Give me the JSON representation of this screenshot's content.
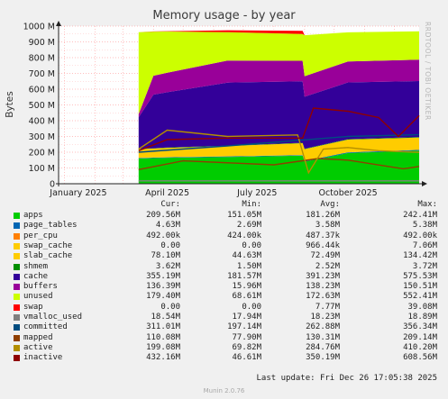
{
  "title": "Memory usage - by year",
  "watermark": "RRDTOOL / TOBI OETIKER",
  "footer": {
    "last_update": "Last update:  Fri Dec 26 17:05:38 2025",
    "version": "Munin 2.0.76"
  },
  "legend_headers": {
    "cur": "Cur:",
    "min": "Min:",
    "avg": "Avg:",
    "max": "Max:"
  },
  "legend": [
    {
      "name": "apps",
      "color": "#00cc00",
      "cur": "209.56M",
      "min": "151.05M",
      "avg": "181.26M",
      "max": "242.41M"
    },
    {
      "name": "page_tables",
      "color": "#0066b3",
      "cur": "4.63M",
      "min": "2.69M",
      "avg": "3.58M",
      "max": "5.38M"
    },
    {
      "name": "per_cpu",
      "color": "#ff8000",
      "cur": "492.00k",
      "min": "424.00k",
      "avg": "487.37k",
      "max": "492.00k"
    },
    {
      "name": "swap_cache",
      "color": "#ffcc00",
      "cur": "0.00",
      "min": "0.00",
      "avg": "966.44k",
      "max": "7.06M"
    },
    {
      "name": "slab_cache",
      "color": "#ffcc00",
      "cur": "78.10M",
      "min": "44.63M",
      "avg": "72.49M",
      "max": "134.42M"
    },
    {
      "name": "shmem",
      "color": "#008f00",
      "cur": "3.62M",
      "min": "1.50M",
      "avg": "2.52M",
      "max": "3.72M"
    },
    {
      "name": "cache",
      "color": "#330099",
      "cur": "355.19M",
      "min": "181.57M",
      "avg": "391.23M",
      "max": "575.53M"
    },
    {
      "name": "buffers",
      "color": "#990099",
      "cur": "136.39M",
      "min": "15.96M",
      "avg": "138.23M",
      "max": "150.51M"
    },
    {
      "name": "unused",
      "color": "#ccff00",
      "cur": "179.40M",
      "min": "68.61M",
      "avg": "172.63M",
      "max": "552.41M"
    },
    {
      "name": "swap",
      "color": "#ff0000",
      "cur": "0.00",
      "min": "0.00",
      "avg": "7.77M",
      "max": "39.08M"
    },
    {
      "name": "vmalloc_used",
      "color": "#808080",
      "cur": "18.54M",
      "min": "17.94M",
      "avg": "18.23M",
      "max": "18.89M"
    },
    {
      "name": "committed",
      "color": "#004d80",
      "cur": "311.01M",
      "min": "197.14M",
      "avg": "262.88M",
      "max": "356.34M"
    },
    {
      "name": "mapped",
      "color": "#8f3f00",
      "cur": "110.08M",
      "min": "77.90M",
      "avg": "130.31M",
      "max": "209.14M"
    },
    {
      "name": "active",
      "color": "#b38f00",
      "cur": "199.08M",
      "min": "69.82M",
      "avg": "284.76M",
      "max": "410.20M"
    },
    {
      "name": "inactive",
      "color": "#8f0000",
      "cur": "432.16M",
      "min": "46.61M",
      "avg": "350.19M",
      "max": "608.56M"
    }
  ],
  "chart_data": {
    "type": "area",
    "title": "Memory usage - by year",
    "ylabel": "Bytes",
    "ylim": [
      0,
      1000
    ],
    "yunit": "M",
    "yticks": [
      "0",
      "100 M",
      "200 M",
      "300 M",
      "400 M",
      "500 M",
      "600 M",
      "700 M",
      "800 M",
      "900 M",
      "1000 M"
    ],
    "xlim": [
      "2024-12-26",
      "2025-12-26"
    ],
    "xticks": [
      "January 2025",
      "April 2025",
      "July 2025",
      "October 2025"
    ],
    "data_start": "2025-03-17",
    "stacked_series": [
      {
        "name": "apps",
        "color": "#00cc00",
        "x": [
          "2025-03-17",
          "2025-04-15",
          "2025-06-15",
          "2025-08-30",
          "2025-09-01",
          "2025-10-15",
          "2025-12-26"
        ],
        "y": [
          160,
          165,
          170,
          178,
          140,
          195,
          210
        ]
      },
      {
        "name": "page_tables",
        "color": "#0066b3",
        "x": [
          "2025-03-17",
          "2025-12-26"
        ],
        "y": [
          3,
          4.6
        ]
      },
      {
        "name": "per_cpu",
        "color": "#ff8000",
        "x": [
          "2025-03-17",
          "2025-12-26"
        ],
        "y": [
          0.5,
          0.5
        ]
      },
      {
        "name": "swap_cache",
        "color": "#ffcc00",
        "x": [
          "2025-03-17",
          "2025-12-26"
        ],
        "y": [
          0.5,
          0
        ]
      },
      {
        "name": "slab_cache",
        "color": "#ffcc00",
        "x": [
          "2025-03-17",
          "2025-06-15",
          "2025-10-15",
          "2025-12-26"
        ],
        "y": [
          55,
          65,
          80,
          78
        ]
      },
      {
        "name": "shmem",
        "color": "#008f00",
        "x": [
          "2025-03-17",
          "2025-12-26"
        ],
        "y": [
          2,
          3.6
        ]
      },
      {
        "name": "cache",
        "color": "#330099",
        "x": [
          "2025-03-17",
          "2025-04-01",
          "2025-06-15",
          "2025-08-30",
          "2025-09-01",
          "2025-10-15",
          "2025-12-26"
        ],
        "y": [
          200,
          340,
          400,
          390,
          330,
          360,
          355
        ]
      },
      {
        "name": "buffers",
        "color": "#990099",
        "x": [
          "2025-03-17",
          "2025-04-01",
          "2025-06-15",
          "2025-09-01",
          "2025-12-26"
        ],
        "y": [
          20,
          120,
          140,
          130,
          136
        ]
      },
      {
        "name": "unused",
        "color": "#ccff00",
        "x": [
          "2025-03-17",
          "2025-04-01",
          "2025-06-15",
          "2025-08-30",
          "2025-09-01",
          "2025-10-15",
          "2025-12-26"
        ],
        "y": [
          520,
          280,
          180,
          170,
          260,
          185,
          180
        ]
      },
      {
        "name": "swap",
        "color": "#ff0000",
        "x": [
          "2025-03-17",
          "2025-04-15",
          "2025-06-15",
          "2025-08-30",
          "2025-09-01",
          "2025-12-26"
        ],
        "y": [
          0,
          2,
          12,
          20,
          0,
          0
        ]
      }
    ],
    "line_series": [
      {
        "name": "vmalloc_used",
        "color": "#808080",
        "x": [
          "2025-03-17",
          "2025-12-26"
        ],
        "y": [
          18,
          18.5
        ]
      },
      {
        "name": "committed",
        "color": "#004d80",
        "x": [
          "2025-03-17",
          "2025-06-15",
          "2025-10-15",
          "2025-12-26"
        ],
        "y": [
          200,
          240,
          300,
          311
        ]
      },
      {
        "name": "mapped",
        "color": "#8f3f00",
        "x": [
          "2025-03-17",
          "2025-05-01",
          "2025-08-01",
          "2025-09-15",
          "2025-10-15",
          "2025-12-10",
          "2025-12-26"
        ],
        "y": [
          90,
          145,
          120,
          160,
          150,
          95,
          110
        ]
      },
      {
        "name": "active",
        "color": "#b38f00",
        "x": [
          "2025-03-17",
          "2025-04-15",
          "2025-06-15",
          "2025-08-25",
          "2025-09-05",
          "2025-09-20",
          "2025-10-15",
          "2025-11-15",
          "2025-12-26"
        ],
        "y": [
          220,
          340,
          300,
          310,
          70,
          220,
          230,
          210,
          199
        ]
      },
      {
        "name": "inactive",
        "color": "#8f0000",
        "x": [
          "2025-03-17",
          "2025-04-15",
          "2025-06-15",
          "2025-08-30",
          "2025-09-10",
          "2025-10-15",
          "2025-11-15",
          "2025-12-05",
          "2025-12-26"
        ],
        "y": [
          210,
          280,
          290,
          290,
          480,
          460,
          420,
          300,
          432
        ]
      }
    ]
  }
}
